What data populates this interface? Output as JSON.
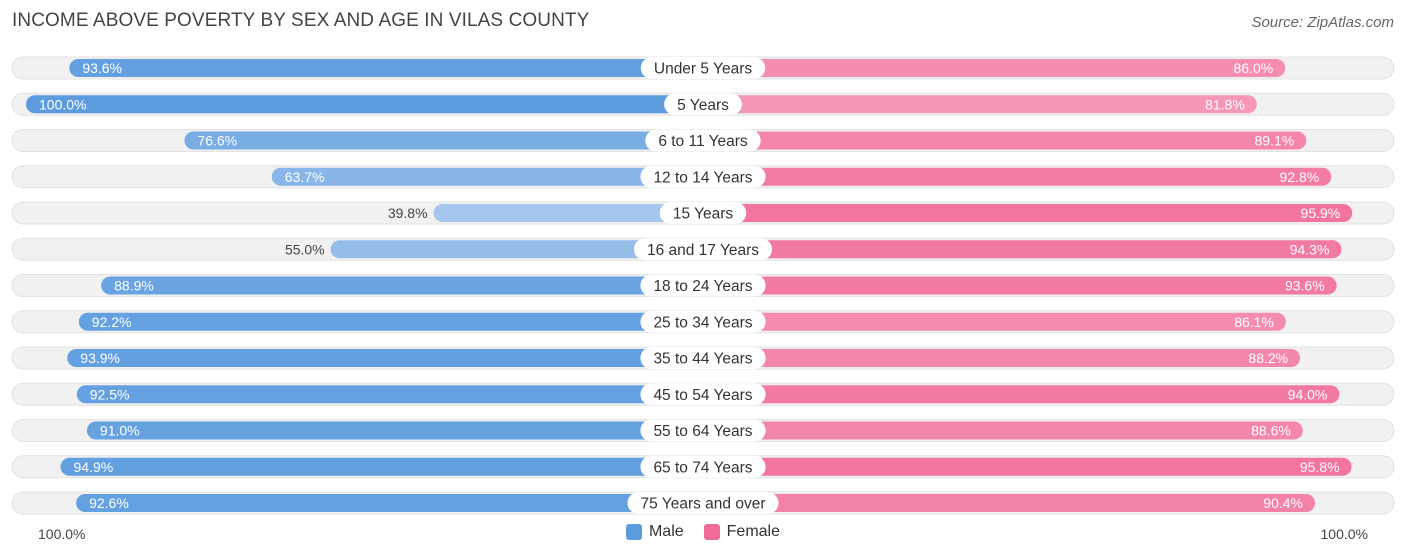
{
  "title": "INCOME ABOVE POVERTY BY SEX AND AGE IN VILAS COUNTY",
  "source": "Source: ZipAtlas.com",
  "colors": {
    "male": "#5b9bde",
    "male_light": "#a7c8ee",
    "female": "#f06b97",
    "female_light": "#f7a7c2",
    "track": "#f1f1f1"
  },
  "axis": {
    "left_label": "100.0%",
    "right_label": "100.0%"
  },
  "legend": {
    "male": "Male",
    "female": "Female"
  },
  "chart_data": {
    "type": "bar",
    "orientation": "diverging-horizontal",
    "title": "INCOME ABOVE POVERTY BY SEX AND AGE IN VILAS COUNTY",
    "categories": [
      "Under 5 Years",
      "5 Years",
      "6 to 11 Years",
      "12 to 14 Years",
      "15 Years",
      "16 and 17 Years",
      "18 to 24 Years",
      "25 to 34 Years",
      "35 to 44 Years",
      "45 to 54 Years",
      "55 to 64 Years",
      "65 to 74 Years",
      "75 Years and over"
    ],
    "series": [
      {
        "name": "Male",
        "values": [
          93.6,
          100.0,
          76.6,
          63.7,
          39.8,
          55.0,
          88.9,
          92.2,
          93.9,
          92.5,
          91.0,
          94.9,
          92.6
        ],
        "labels": [
          "93.6%",
          "100.0%",
          "76.6%",
          "63.7%",
          "39.8%",
          "55.0%",
          "88.9%",
          "92.2%",
          "93.9%",
          "92.5%",
          "91.0%",
          "94.9%",
          "92.6%"
        ]
      },
      {
        "name": "Female",
        "values": [
          86.0,
          81.8,
          89.1,
          92.8,
          95.9,
          94.3,
          93.6,
          86.1,
          88.2,
          94.0,
          88.6,
          95.8,
          90.4
        ],
        "labels": [
          "86.0%",
          "81.8%",
          "89.1%",
          "92.8%",
          "95.9%",
          "94.3%",
          "93.6%",
          "86.1%",
          "88.2%",
          "94.0%",
          "88.6%",
          "95.8%",
          "90.4%"
        ]
      }
    ],
    "xlim": [
      0,
      100
    ],
    "legend_position": "bottom-center"
  }
}
